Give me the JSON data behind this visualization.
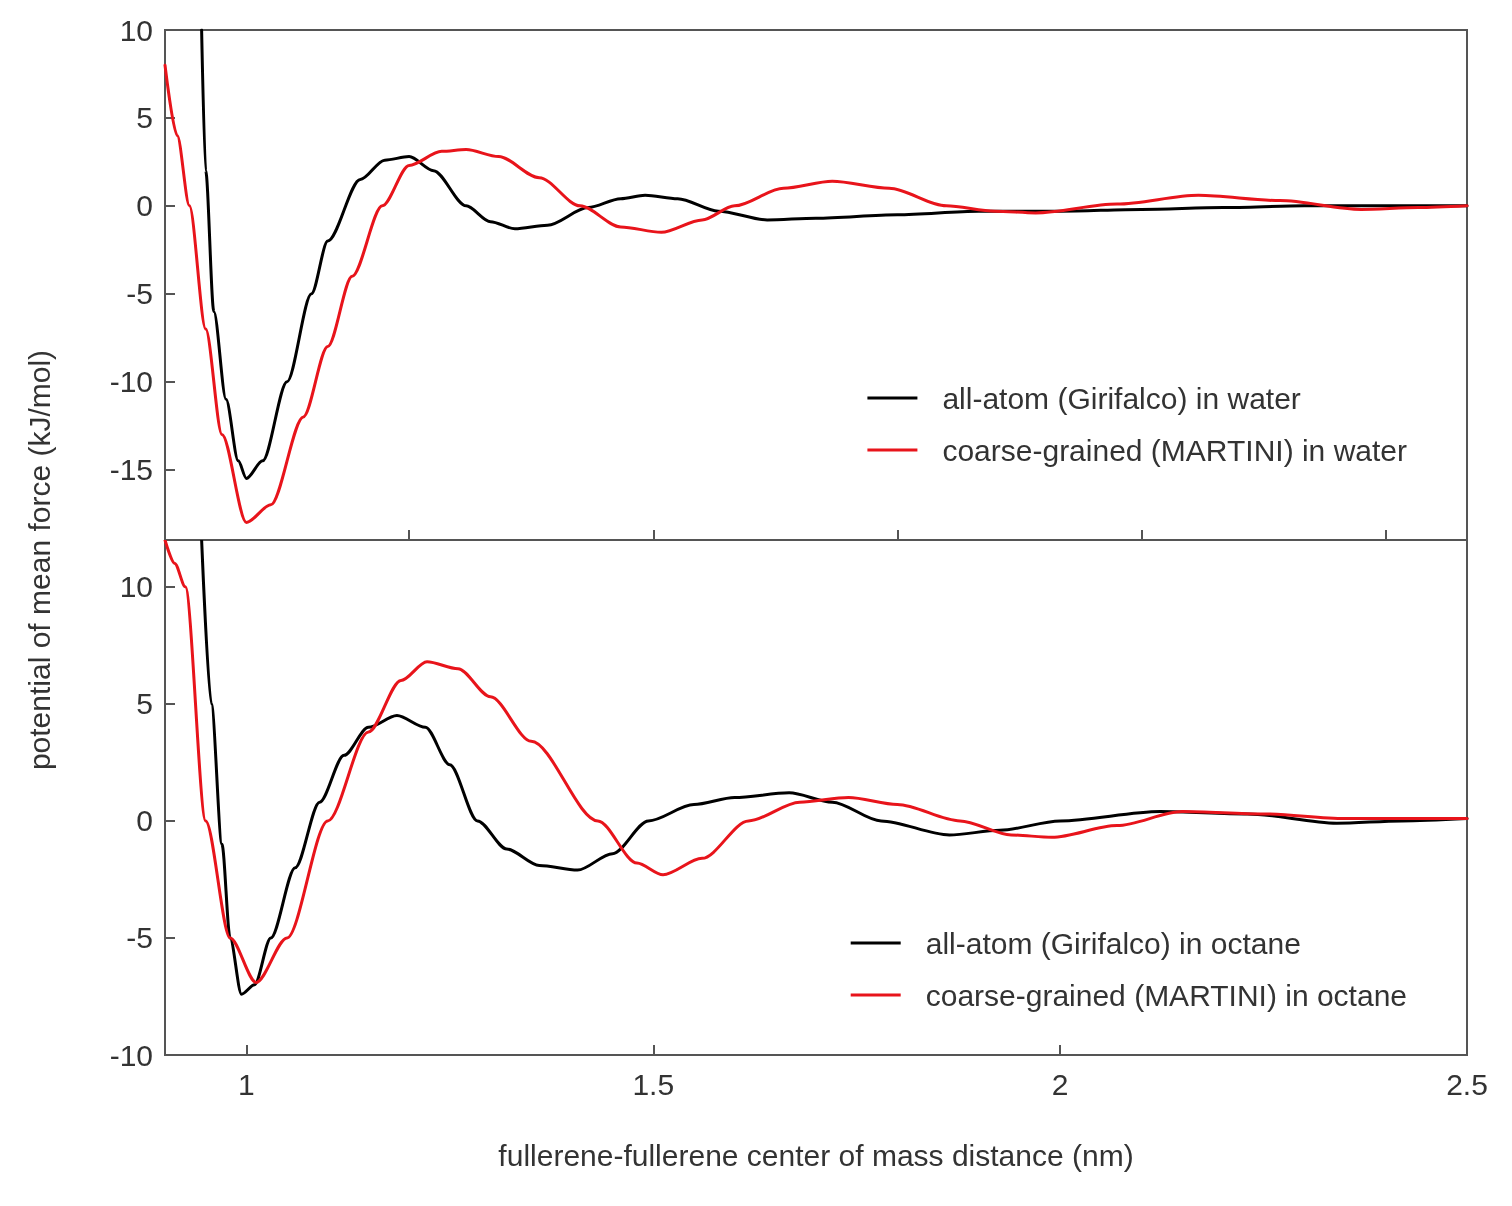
{
  "chart_data": [
    {
      "type": "line",
      "ylabel": "potential of mean force (kJ/mol)",
      "xlim": [
        0.9,
        2.5
      ],
      "ylim": [
        -19,
        10
      ],
      "yticks": [
        -15,
        -10,
        -5,
        0,
        5,
        10
      ],
      "tick_labels": "y",
      "grid": false,
      "legend": "bottom right",
      "line_style": "solid",
      "series": [
        {
          "name": "all-atom (Girifalco) in water",
          "color": "#000000",
          "x": [
            0.945,
            0.95,
            0.96,
            0.975,
            0.99,
            1.0,
            1.02,
            1.05,
            1.08,
            1.1,
            1.14,
            1.17,
            1.2,
            1.23,
            1.27,
            1.3,
            1.33,
            1.37,
            1.42,
            1.46,
            1.49,
            1.53,
            1.58,
            1.64,
            1.7,
            1.8,
            1.9,
            2.0,
            2.1,
            2.2,
            2.3,
            2.4,
            2.5
          ],
          "values": [
            10,
            2,
            -6,
            -11,
            -14.5,
            -15.5,
            -14.5,
            -10,
            -5,
            -2,
            1.5,
            2.6,
            2.8,
            2.0,
            0,
            -0.9,
            -1.3,
            -1.1,
            -0.1,
            0.4,
            0.6,
            0.4,
            -0.3,
            -0.8,
            -0.7,
            -0.5,
            -0.3,
            -0.3,
            -0.2,
            -0.1,
            0,
            0,
            0
          ]
        },
        {
          "name": "coarse-grained (MARTINI) in water",
          "color": "#e8141b",
          "x": [
            0.9,
            0.915,
            0.93,
            0.95,
            0.97,
            1.0,
            1.03,
            1.07,
            1.1,
            1.13,
            1.167,
            1.2,
            1.24,
            1.27,
            1.31,
            1.36,
            1.41,
            1.46,
            1.51,
            1.56,
            1.6,
            1.66,
            1.72,
            1.79,
            1.86,
            1.92,
            1.97,
            2.07,
            2.17,
            2.27,
            2.37,
            2.44,
            2.5
          ],
          "values": [
            8,
            4,
            0,
            -7,
            -13,
            -18,
            -17,
            -12,
            -8,
            -4,
            0,
            2.3,
            3.1,
            3.2,
            2.8,
            1.6,
            0,
            -1.2,
            -1.5,
            -0.8,
            0,
            1.0,
            1.4,
            1.0,
            0,
            -0.3,
            -0.4,
            0.1,
            0.6,
            0.3,
            -0.2,
            -0.1,
            0
          ]
        }
      ]
    },
    {
      "type": "line",
      "xlabel": "fullerene-fullerene center of mass distance (nm)",
      "xlim": [
        0.9,
        2.5
      ],
      "xticks": [
        1,
        1.5,
        2,
        2.5
      ],
      "ylim": [
        -10,
        12
      ],
      "yticks": [
        -10,
        -5,
        0,
        5,
        10
      ],
      "grid": false,
      "legend": "bottom right",
      "line_style": "solid",
      "series": [
        {
          "name": "all-atom (Girifalco) in octane",
          "color": "#000000",
          "x": [
            0.945,
            0.957,
            0.97,
            0.98,
            0.994,
            1.01,
            1.03,
            1.06,
            1.09,
            1.12,
            1.15,
            1.185,
            1.22,
            1.25,
            1.284,
            1.32,
            1.36,
            1.407,
            1.45,
            1.494,
            1.55,
            1.6,
            1.667,
            1.72,
            1.78,
            1.864,
            1.926,
            2.0,
            2.123,
            2.23,
            2.34,
            2.42,
            2.5
          ],
          "values": [
            12,
            5,
            -1,
            -5,
            -7.4,
            -7,
            -5,
            -2,
            0.8,
            2.8,
            4.0,
            4.5,
            4.0,
            2.4,
            0,
            -1.2,
            -1.9,
            -2.1,
            -1.4,
            0,
            0.7,
            1.0,
            1.2,
            0.8,
            0,
            -0.6,
            -0.4,
            0,
            0.4,
            0.3,
            -0.1,
            0,
            0.1
          ]
        },
        {
          "name": "coarse-grained (MARTINI) in octane",
          "color": "#e8141b",
          "x": [
            0.9,
            0.912,
            0.925,
            0.95,
            0.98,
            1.012,
            1.05,
            1.1,
            1.15,
            1.19,
            1.222,
            1.26,
            1.3,
            1.35,
            1.432,
            1.48,
            1.512,
            1.56,
            1.617,
            1.68,
            1.74,
            1.8,
            1.877,
            1.94,
            1.99,
            2.07,
            2.15,
            2.25,
            2.35,
            2.5
          ],
          "values": [
            12,
            11,
            10,
            0,
            -5,
            -6.9,
            -5,
            0,
            3.8,
            6.0,
            6.8,
            6.5,
            5.3,
            3.4,
            0,
            -1.8,
            -2.3,
            -1.6,
            0,
            0.8,
            1.0,
            0.7,
            0,
            -0.6,
            -0.7,
            -0.2,
            0.4,
            0.3,
            0.1,
            0.1
          ]
        }
      ]
    }
  ]
}
